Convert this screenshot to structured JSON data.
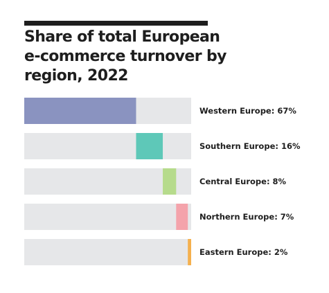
{
  "chart_data": {
    "type": "bar",
    "title": "Share of total European e-commerce turnover by region, 2022",
    "categories": [
      "Western Europe",
      "Southern Europe",
      "Central Europe",
      "Northern Europe",
      "Eastern Europe"
    ],
    "values": [
      67,
      16,
      8,
      7,
      2
    ],
    "labels": [
      "Western Europe: 67%",
      "Southern Europe: 16%",
      "Central Europe: 8%",
      "Northern Europe: 7%",
      "Eastern Europe: 2%"
    ],
    "unit": "%",
    "stacked_offset": true,
    "ylim": [
      0,
      100
    ],
    "colors": [
      "#8a93c0",
      "#5ec8b8",
      "#b6db8c",
      "#f4a3ab",
      "#f5b04e"
    ],
    "track_color": "#e6e7e9",
    "grid": false,
    "legend": "none"
  }
}
